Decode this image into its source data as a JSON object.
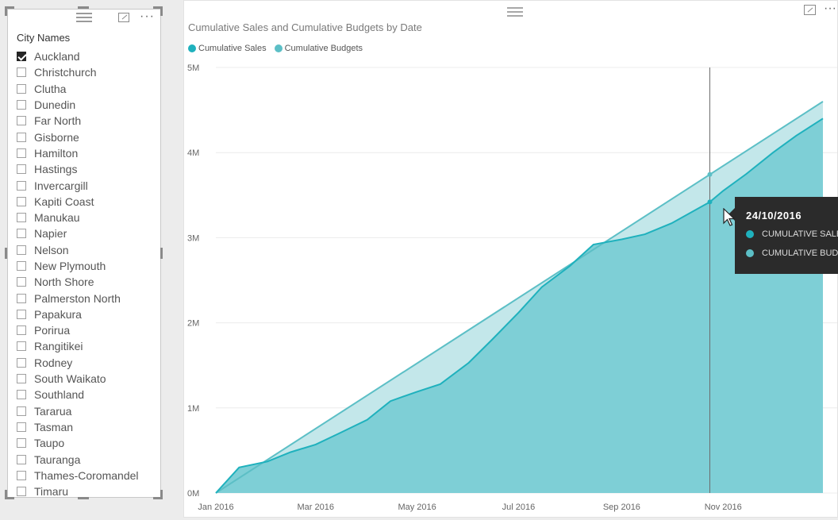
{
  "slicer": {
    "header": "City Names",
    "cities": [
      {
        "label": "Auckland",
        "checked": true
      },
      {
        "label": "Christchurch",
        "checked": false
      },
      {
        "label": "Clutha",
        "checked": false
      },
      {
        "label": "Dunedin",
        "checked": false
      },
      {
        "label": "Far North",
        "checked": false
      },
      {
        "label": "Gisborne",
        "checked": false
      },
      {
        "label": "Hamilton",
        "checked": false
      },
      {
        "label": "Hastings",
        "checked": false
      },
      {
        "label": "Invercargill",
        "checked": false
      },
      {
        "label": "Kapiti Coast",
        "checked": false
      },
      {
        "label": "Manukau",
        "checked": false
      },
      {
        "label": "Napier",
        "checked": false
      },
      {
        "label": "Nelson",
        "checked": false
      },
      {
        "label": "New Plymouth",
        "checked": false
      },
      {
        "label": "North Shore",
        "checked": false
      },
      {
        "label": "Palmerston North",
        "checked": false
      },
      {
        "label": "Papakura",
        "checked": false
      },
      {
        "label": "Porirua",
        "checked": false
      },
      {
        "label": "Rangitikei",
        "checked": false
      },
      {
        "label": "Rodney",
        "checked": false
      },
      {
        "label": "South Waikato",
        "checked": false
      },
      {
        "label": "Southland",
        "checked": false
      },
      {
        "label": "Tararua",
        "checked": false
      },
      {
        "label": "Tasman",
        "checked": false
      },
      {
        "label": "Taupo",
        "checked": false
      },
      {
        "label": "Tauranga",
        "checked": false
      },
      {
        "label": "Thames-Coromandel",
        "checked": false
      },
      {
        "label": "Timaru",
        "checked": false
      }
    ]
  },
  "chart": {
    "title": "Cumulative Sales and Cumulative Budgets by Date"
  },
  "tooltip": {
    "date": "24/10/2016",
    "rows": [
      "CUMULATIVE SALES",
      "CUMULATIVE BUDGETS"
    ]
  },
  "colors": {
    "sales": "#1fb1bd",
    "budgets": "#5cbfc6",
    "sales_fill": "#7ecfd6",
    "budget_fill": "#c3e7ea",
    "tooltip_bg": "#2b2b2b"
  },
  "chart_data": {
    "type": "area",
    "title": "Cumulative Sales and Cumulative Budgets by Date",
    "xlabel": "",
    "ylabel": "",
    "x_ticks": [
      "Jan 2016",
      "Mar 2016",
      "May 2016",
      "Jul 2016",
      "Sep 2016",
      "Nov 2016"
    ],
    "y_ticks": [
      "0M",
      "1M",
      "2M",
      "3M",
      "4M",
      "5M"
    ],
    "ylim": [
      0,
      5000000
    ],
    "xlim": [
      "2016-01-01",
      "2016-12-31"
    ],
    "grid": true,
    "legend": "top-left",
    "hover_date": "2016-10-24",
    "series": [
      {
        "name": "Cumulative Sales",
        "x": [
          "2016-01-01",
          "2016-01-15",
          "2016-02-01",
          "2016-02-15",
          "2016-03-01",
          "2016-03-15",
          "2016-04-01",
          "2016-04-15",
          "2016-05-01",
          "2016-05-15",
          "2016-06-01",
          "2016-06-15",
          "2016-07-01",
          "2016-07-15",
          "2016-08-01",
          "2016-08-15",
          "2016-09-01",
          "2016-09-15",
          "2016-10-01",
          "2016-10-24",
          "2016-11-01",
          "2016-11-15",
          "2016-12-01",
          "2016-12-15",
          "2016-12-31"
        ],
        "values": [
          0,
          300000,
          370000,
          480000,
          570000,
          700000,
          860000,
          1080000,
          1190000,
          1280000,
          1530000,
          1800000,
          2120000,
          2420000,
          2670000,
          2920000,
          2980000,
          3040000,
          3170000,
          3420000,
          3550000,
          3750000,
          4000000,
          4200000,
          4400000
        ]
      },
      {
        "name": "Cumulative Budgets",
        "x": [
          "2016-01-01",
          "2016-12-31"
        ],
        "values": [
          0,
          4600000
        ]
      }
    ]
  }
}
